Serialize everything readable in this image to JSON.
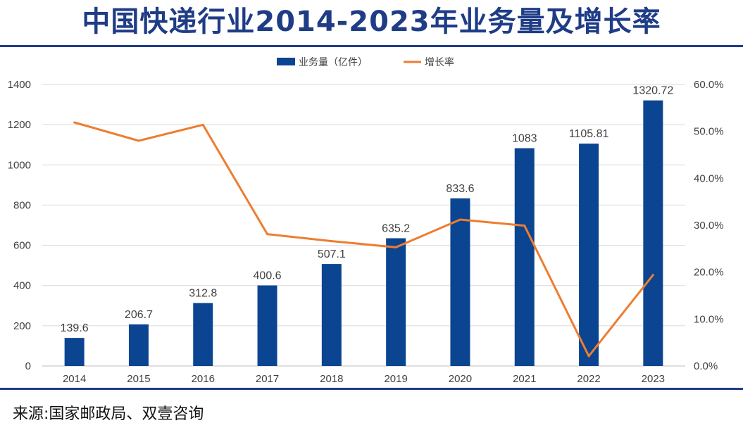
{
  "title": "中国快递行业2014-2023年业务量及增长率",
  "source": "来源:国家邮政局、双壹咨询",
  "colors": {
    "bar": "#0b4491",
    "line": "#ed7d31",
    "title": "#1f3c86",
    "grid": "#d9d9d9"
  },
  "chart_data": {
    "type": "bar",
    "categories": [
      "2014",
      "2015",
      "2016",
      "2017",
      "2018",
      "2019",
      "2020",
      "2021",
      "2022",
      "2023"
    ],
    "series": [
      {
        "name": "业务量（亿件）",
        "type": "bar",
        "axis": "left",
        "values": [
          139.6,
          206.7,
          312.8,
          400.6,
          507.1,
          635.2,
          833.6,
          1083,
          1105.81,
          1320.72
        ],
        "labels": [
          "139.6",
          "206.7",
          "312.8",
          "400.6",
          "507.1",
          "635.2",
          "833.6",
          "1083",
          "1105.81",
          "1320.72"
        ]
      },
      {
        "name": "增长率",
        "type": "line",
        "axis": "right",
        "values": [
          51.9,
          48.0,
          51.4,
          28.1,
          26.6,
          25.3,
          31.2,
          29.9,
          2.1,
          19.4
        ]
      }
    ],
    "ylim": [
      0,
      1400
    ],
    "yticks": [
      "0",
      "200",
      "400",
      "600",
      "800",
      "1000",
      "1200",
      "1400"
    ],
    "y2lim": [
      0,
      60
    ],
    "y2ticks": [
      "0.0%",
      "10.0%",
      "20.0%",
      "30.0%",
      "40.0%",
      "50.0%",
      "60.0%"
    ],
    "grid": true,
    "legend_position": "top-center"
  }
}
